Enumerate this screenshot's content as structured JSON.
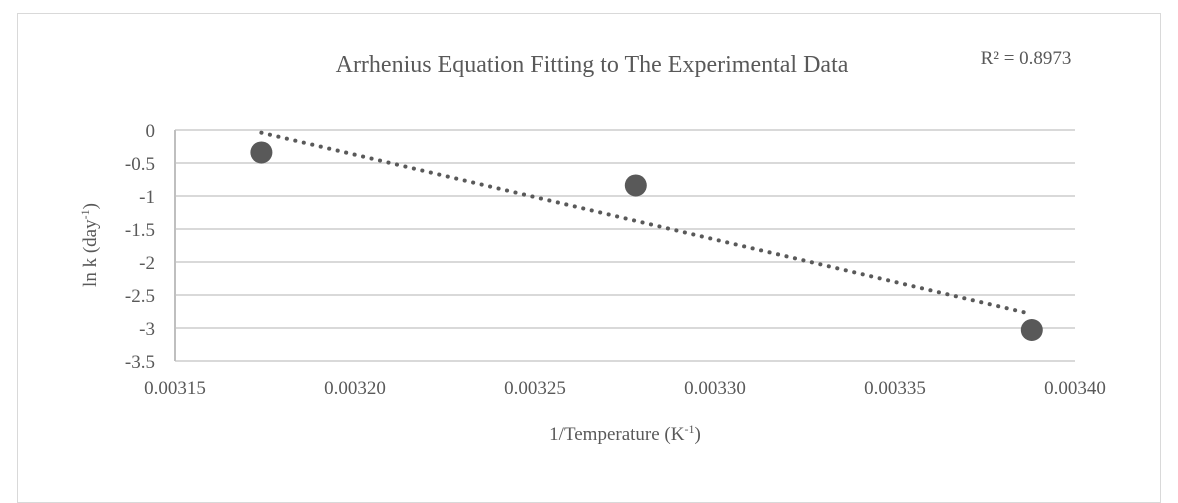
{
  "chart_data": {
    "type": "scatter",
    "title": "Arrhenius Equation Fitting to The Experimental Data",
    "r_squared_label": "R² = 0.8973",
    "xlabel": {
      "base": "1/Temperature (K",
      "sup": "-1",
      "end": ")"
    },
    "ylabel": {
      "base": "ln k (day",
      "sup": "-1",
      "end": ")"
    },
    "xlim": [
      0.00315,
      0.0034
    ],
    "ylim": [
      -3.5,
      0
    ],
    "x_ticks": [
      0.00315,
      0.0032,
      0.00325,
      0.0033,
      0.00335,
      0.0034
    ],
    "x_tick_labels": [
      "0.00315",
      "0.00320",
      "0.00325",
      "0.00330",
      "0.00335",
      "0.00340"
    ],
    "y_ticks": [
      0,
      -0.5,
      -1,
      -1.5,
      -2,
      -2.5,
      -3,
      -3.5
    ],
    "y_tick_labels": [
      "0",
      "-0.5",
      "-1",
      "-1.5",
      "-2",
      "-2.5",
      "-3",
      "-3.5"
    ],
    "grid": true,
    "legend": "none",
    "series": [
      {
        "x": [
          0.003174,
          0.003278,
          0.003388
        ],
        "y": [
          -0.34,
          -0.84,
          -3.03
        ]
      }
    ],
    "trendline": {
      "style": "dotted",
      "x": [
        0.003174,
        0.003388
      ],
      "y": [
        -0.04,
        -2.79
      ]
    },
    "colors": {
      "marker": "#595959",
      "trendline": "#595959",
      "grid": "#d9d9d9",
      "axis": "#bfbfbf",
      "text": "#595959"
    }
  }
}
